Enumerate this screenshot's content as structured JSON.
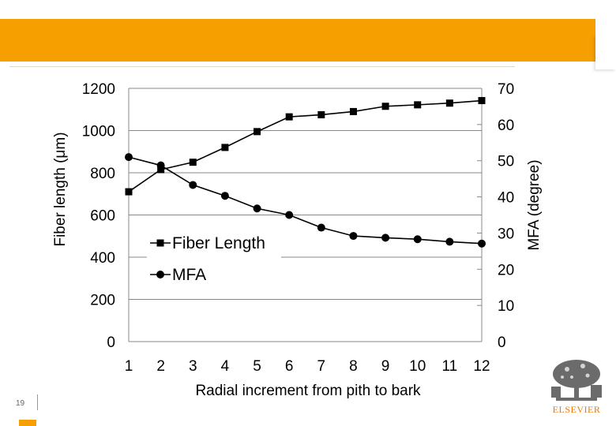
{
  "slide": {
    "number": "19",
    "publisher": "ELSEVIER"
  },
  "chart_data": {
    "type": "line",
    "title": "",
    "xlabel": "Radial increment from pith to bark",
    "ylabel": "Fiber length (μm)",
    "ylabel_right": "MFA (degree)",
    "categories": [
      "1",
      "2",
      "3",
      "4",
      "5",
      "6",
      "7",
      "8",
      "9",
      "10",
      "11",
      "12"
    ],
    "ylim": [
      0,
      1200
    ],
    "ylim_right": [
      0,
      70
    ],
    "yticks": [
      "0",
      "200",
      "400",
      "600",
      "800",
      "1000",
      "1200"
    ],
    "yticks_right": [
      "0",
      "10",
      "20",
      "30",
      "40",
      "50",
      "60",
      "70"
    ],
    "grid": true,
    "legend": "center-left",
    "series": [
      {
        "name": "Fiber Length",
        "axis": "left",
        "marker": "square",
        "values": [
          710,
          815,
          850,
          920,
          995,
          1065,
          1075,
          1090,
          1115,
          1122,
          1130,
          1142
        ]
      },
      {
        "name": "MFA",
        "axis": "right",
        "marker": "circle",
        "values": [
          51,
          48.7,
          43.3,
          40.3,
          36.8,
          35,
          31.5,
          29.2,
          28.7,
          28.3,
          27.6,
          27.1
        ]
      }
    ]
  }
}
